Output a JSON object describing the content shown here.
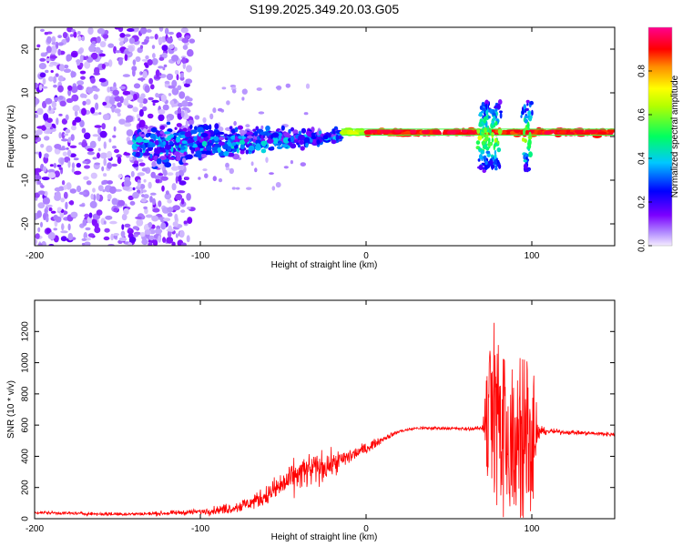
{
  "title": "S199.2025.349.20.03.G05",
  "colors": {
    "snr_line": "#ff0000",
    "frame": "#000000",
    "background": "#ffffff"
  },
  "chart_data": [
    {
      "type": "heatmap",
      "name": "spectrogram",
      "xlabel": "Height of straight line (km)",
      "ylabel": "Frequency (Hz)",
      "xlim": [
        -200,
        150
      ],
      "ylim": [
        -25,
        25
      ],
      "x_ticks": [
        {
          "value": -200,
          "label": "-200"
        },
        {
          "value": -100,
          "label": "-100"
        },
        {
          "value": 0,
          "label": "0"
        },
        {
          "value": 100,
          "label": "100"
        }
      ],
      "y_ticks": [
        {
          "value": 20,
          "label": "20"
        },
        {
          "value": 10,
          "label": "10"
        },
        {
          "value": 0,
          "label": "0"
        },
        {
          "value": -10,
          "label": "-10"
        },
        {
          "value": -20,
          "label": "-20"
        }
      ],
      "colorbar": {
        "label": "Normalized spectral amplitude",
        "range": [
          0,
          1
        ],
        "ticks": [
          {
            "value": 0.0,
            "label": "0.0"
          },
          {
            "value": 0.2,
            "label": "0.2"
          },
          {
            "value": 0.4,
            "label": "0.4"
          },
          {
            "value": 0.6,
            "label": "0.6"
          },
          {
            "value": 0.8,
            "label": "0.8"
          }
        ],
        "colormap": "rainbow: white/violet (0) - purple - blue - cyan - green - yellow - orange - red - magenta (1)"
      },
      "features": [
        {
          "x_range": [
            -200,
            -105
          ],
          "description": "scattered low-amplitude noise across all frequencies"
        },
        {
          "x_range": [
            -140,
            -15
          ],
          "freq_center_hz": -2,
          "amplitude": "medium",
          "description": "band near -2 Hz"
        },
        {
          "x_range": [
            -15,
            150
          ],
          "freq_center_hz": 1,
          "amplitude": "high",
          "description": "strong carrier near 1 Hz"
        },
        {
          "x_range": [
            65,
            105
          ],
          "freq_range_hz": [
            -8,
            8
          ],
          "amplitude": "medium",
          "description": "vertical bursts"
        }
      ]
    },
    {
      "type": "line",
      "name": "snr",
      "xlabel": "Height of straight line (km)",
      "ylabel": "SNR (10 * v/v)",
      "xlim": [
        -200,
        150
      ],
      "ylim": [
        0,
        1400
      ],
      "x_ticks": [
        {
          "value": -200,
          "label": "-200"
        },
        {
          "value": -100,
          "label": "-100"
        },
        {
          "value": 0,
          "label": "0"
        },
        {
          "value": 100,
          "label": "100"
        }
      ],
      "y_ticks": [
        {
          "value": 0,
          "label": "0"
        },
        {
          "value": 200,
          "label": "200"
        },
        {
          "value": 400,
          "label": "400"
        },
        {
          "value": 600,
          "label": "600"
        },
        {
          "value": 800,
          "label": "800"
        },
        {
          "value": 1000,
          "label": "1000"
        },
        {
          "value": 1200,
          "label": "1200"
        }
      ],
      "series": [
        {
          "name": "SNR",
          "x": [
            -200,
            -180,
            -160,
            -140,
            -120,
            -100,
            -90,
            -80,
            -70,
            -60,
            -50,
            -40,
            -30,
            -20,
            -10,
            0,
            10,
            20,
            30,
            40,
            50,
            60,
            70,
            75,
            80,
            85,
            90,
            95,
            100,
            105,
            110,
            120,
            130,
            140,
            150
          ],
          "y": [
            40,
            35,
            30,
            30,
            35,
            45,
            55,
            70,
            100,
            150,
            220,
            290,
            320,
            350,
            400,
            450,
            510,
            560,
            580,
            580,
            580,
            575,
            580,
            700,
            600,
            500,
            600,
            450,
            550,
            560,
            560,
            555,
            550,
            545,
            540
          ],
          "y_spread": [
            12,
            12,
            12,
            12,
            15,
            20,
            30,
            40,
            50,
            70,
            100,
            120,
            120,
            80,
            60,
            40,
            20,
            12,
            12,
            12,
            12,
            12,
            12,
            600,
            600,
            500,
            500,
            600,
            500,
            30,
            20,
            15,
            15,
            15,
            15
          ]
        }
      ]
    }
  ]
}
